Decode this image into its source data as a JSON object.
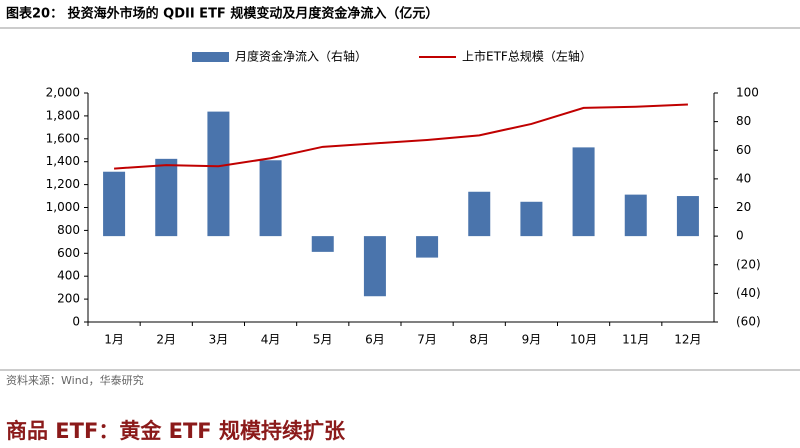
{
  "chart_data": {
    "type": "bar-line",
    "title": "图表20： 投资海外市场的 QDII ETF 规模变动及月度资金净流入（亿元）",
    "categories": [
      "1月",
      "2月",
      "3月",
      "4月",
      "5月",
      "6月",
      "7月",
      "8月",
      "9月",
      "10月",
      "11月",
      "12月"
    ],
    "series": [
      {
        "name": "月度资金净流入（右轴）",
        "type": "bar",
        "axis": "y2",
        "color": "#4a74ac",
        "values": [
          45,
          54,
          87,
          53,
          -11,
          -42,
          -15,
          31,
          24,
          62,
          29,
          28
        ]
      },
      {
        "name": "上市ETF总规模（左轴）",
        "type": "line",
        "color": "#c00000",
        "values": [
          1340,
          1370,
          1360,
          1430,
          1530,
          1560,
          1590,
          1630,
          1730,
          1870,
          1880,
          1900
        ]
      }
    ],
    "ylim": [
      0,
      2000
    ],
    "yticks": [
      0,
      200,
      400,
      600,
      800,
      {
        "value": 1000,
        "label": "1,000"
      },
      {
        "value": 1200,
        "label": "1,200"
      },
      {
        "value": 1400,
        "label": "1,400"
      },
      {
        "value": 1600,
        "label": "1,600"
      },
      {
        "value": 1800,
        "label": "1,800"
      },
      {
        "value": 2000,
        "label": "2,000"
      }
    ],
    "y2lim": [
      -60,
      100
    ],
    "y2ticks": [
      {
        "value": -60,
        "label": "(60)"
      },
      {
        "value": -40,
        "label": "(40)"
      },
      {
        "value": -20,
        "label": "(20)"
      },
      0,
      20,
      40,
      60,
      80,
      100
    ],
    "legend": "top"
  },
  "source": "资料来源：Wind，华泰研究",
  "section_title": "商品 ETF：黄金 ETF 规模持续扩张"
}
